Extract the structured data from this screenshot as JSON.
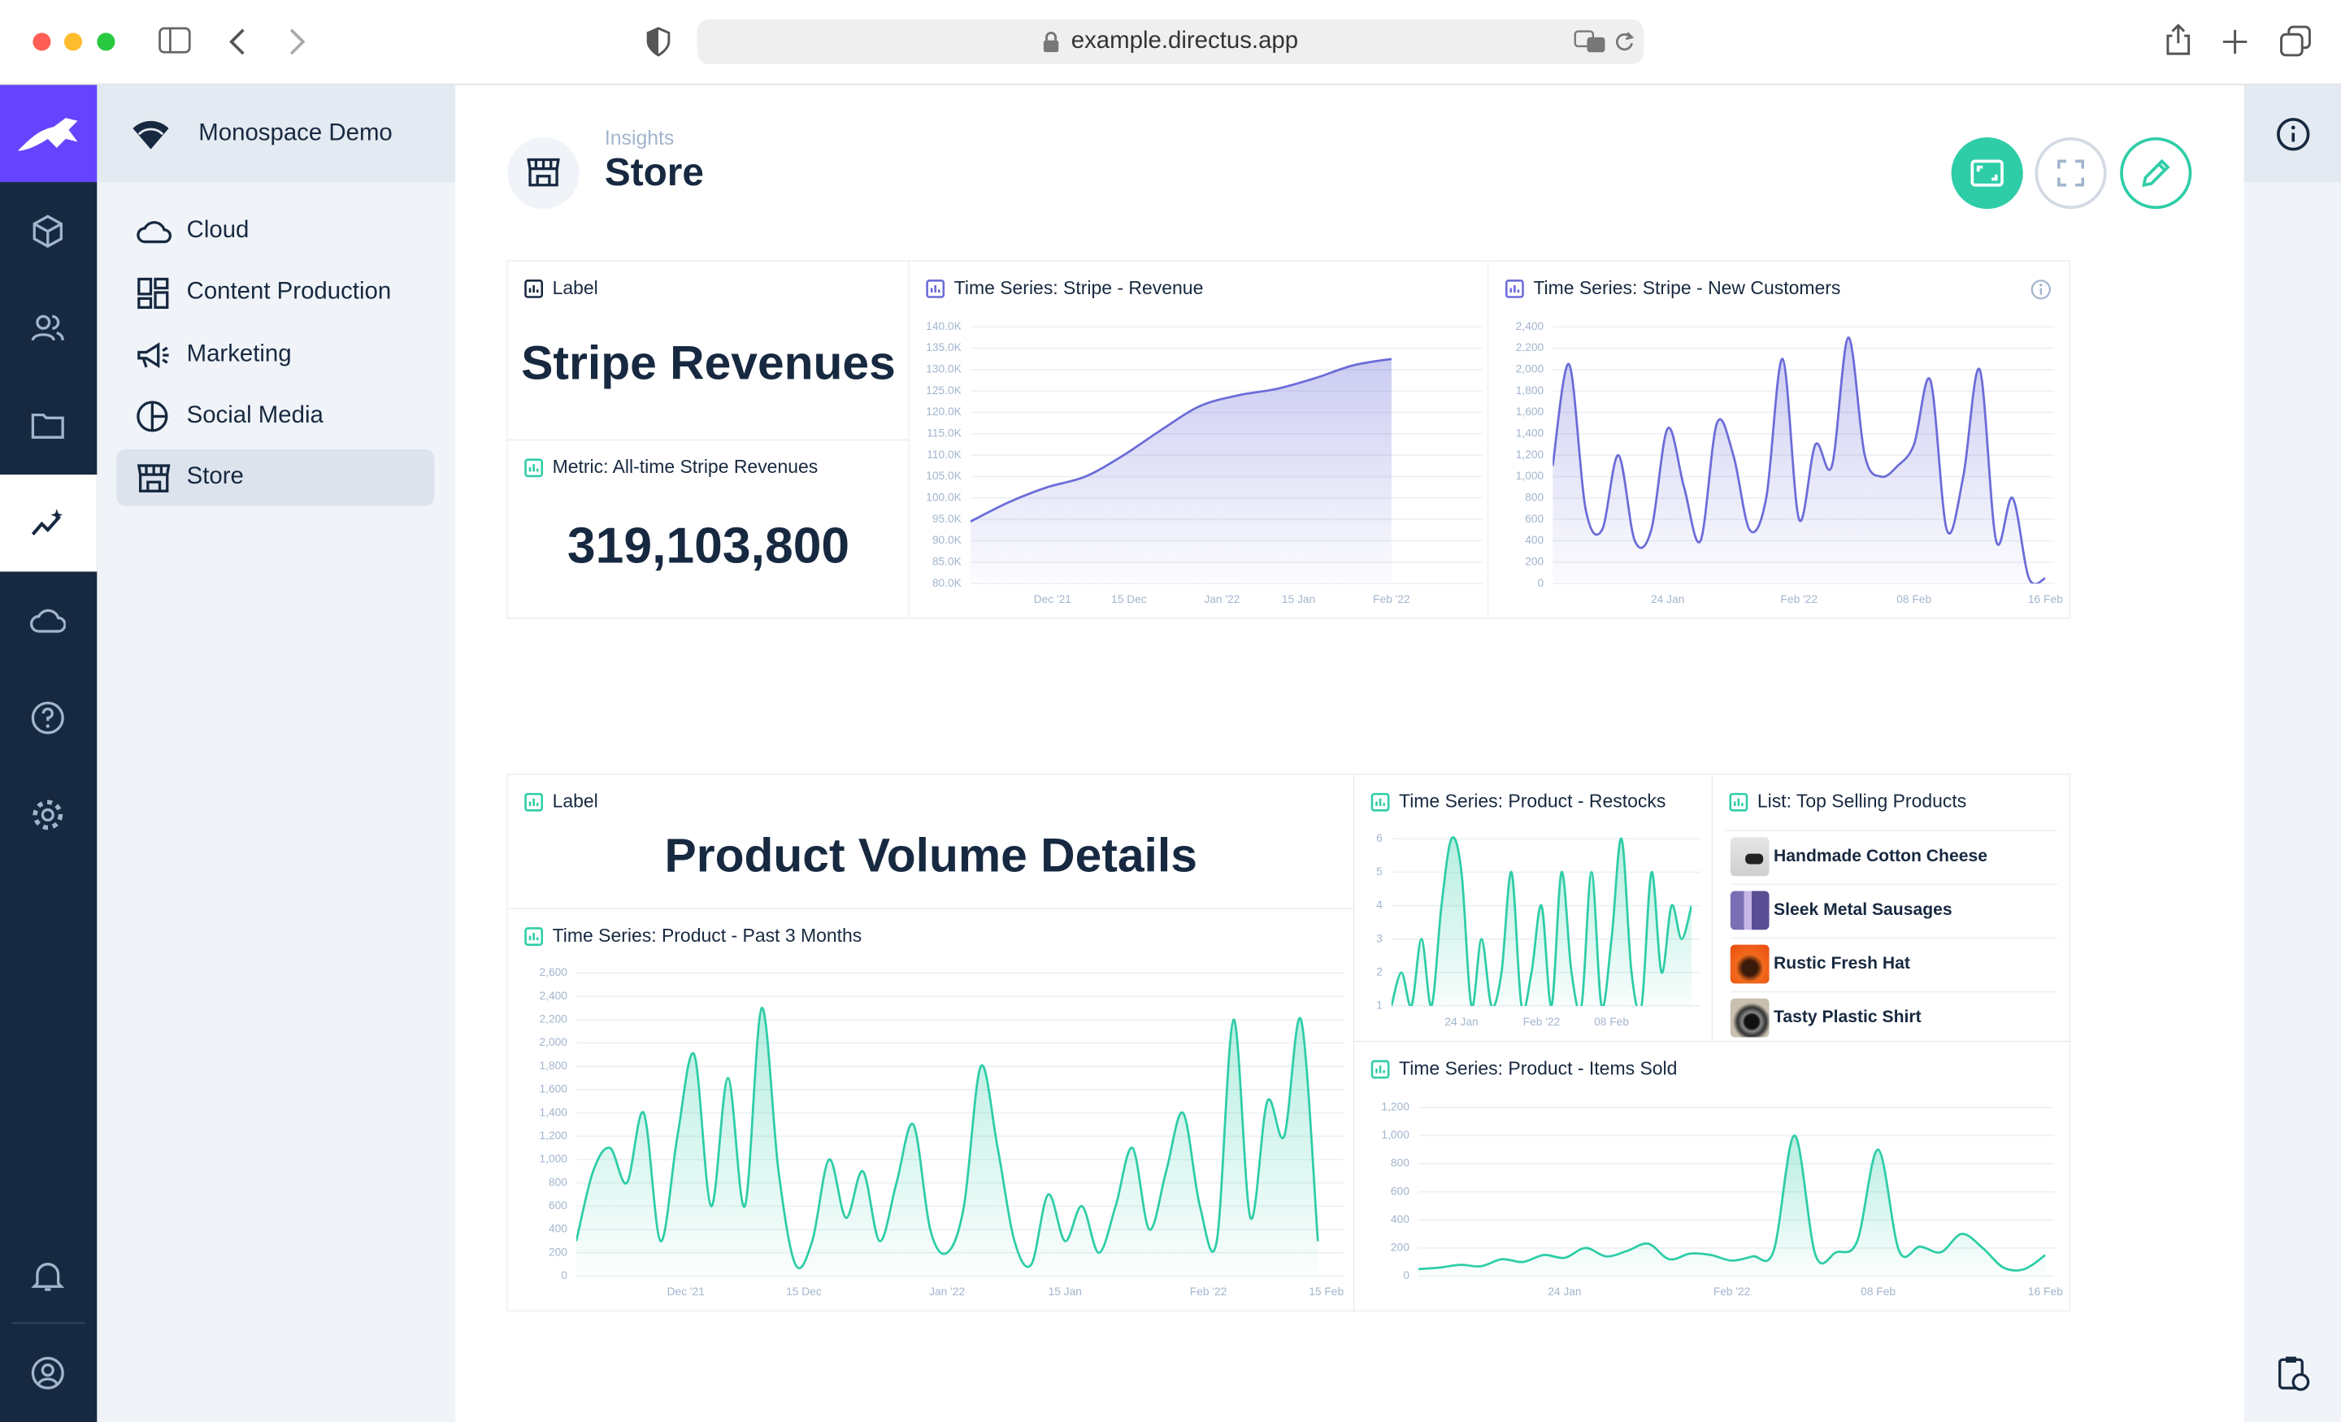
{
  "browser": {
    "url": "example.directus.app"
  },
  "project": "Monospace Demo",
  "nav": [
    "Cloud",
    "Content Production",
    "Marketing",
    "Social Media",
    "Store"
  ],
  "header": {
    "breadcrumb": "Insights",
    "title": "Store"
  },
  "panels": [
    {
      "title": "Label",
      "text": "Stripe Revenues"
    },
    {
      "title": "Metric: All-time Stripe Revenues",
      "value": "319,103,800"
    },
    {
      "title": "Time Series: Stripe - Revenue",
      "chart": {
        "type": "area",
        "x": [
          "2021-11-16",
          "2021-11-23",
          "2021-11-30",
          "2021-12-07",
          "2021-12-14",
          "2021-12-21",
          "2021-12-28",
          "2022-01-04",
          "2022-01-11",
          "2022-01-18",
          "2022-01-25",
          "2022-02-01"
        ],
        "series": [
          {
            "color": "#6b6cd8",
            "values": [
              94500,
              99000,
              102500,
              105000,
              110000,
              116000,
              121500,
              124000,
              125500,
              128000,
              131000,
              132500
            ]
          }
        ],
        "xlim": [
          "2021-11-16",
          "2022-02-16"
        ],
        "xticks": [
          {
            "value": "2021-12-01",
            "label": "Dec '21"
          },
          {
            "value": "2021-12-15",
            "label": "15 Dec"
          },
          {
            "value": "2022-01-01",
            "label": "Jan '22"
          },
          {
            "value": "2022-01-15",
            "label": "15 Jan"
          },
          {
            "value": "2022-02-01",
            "label": "Feb '22"
          }
        ],
        "ylim": [
          80000,
          140000
        ],
        "yticks": [
          {
            "value": 80000,
            "label": "80.0K"
          },
          {
            "value": 85000,
            "label": "85.0K"
          },
          {
            "value": 90000,
            "label": "90.0K"
          },
          {
            "value": 95000,
            "label": "95.0K"
          },
          {
            "value": 100000,
            "label": "100.0K"
          },
          {
            "value": 105000,
            "label": "105.0K"
          },
          {
            "value": 110000,
            "label": "110.0K"
          },
          {
            "value": 115000,
            "label": "115.0K"
          },
          {
            "value": 120000,
            "label": "120.0K"
          },
          {
            "value": 125000,
            "label": "125.0K"
          },
          {
            "value": 130000,
            "label": "130.0K"
          },
          {
            "value": 135000,
            "label": "135.0K"
          },
          {
            "value": 140000,
            "label": "140.0K"
          }
        ],
        "grid": true
      }
    },
    {
      "title": "Time Series: Stripe - New Customers",
      "chart": {
        "type": "area",
        "x": [
          "2022-01-17",
          "2022-01-18",
          "2022-01-19",
          "2022-01-20",
          "2022-01-21",
          "2022-01-22",
          "2022-01-23",
          "2022-01-24",
          "2022-01-25",
          "2022-01-26",
          "2022-01-27",
          "2022-01-28",
          "2022-01-29",
          "2022-01-30",
          "2022-01-31",
          "2022-02-01",
          "2022-02-02",
          "2022-02-03",
          "2022-02-04",
          "2022-02-05",
          "2022-02-06",
          "2022-02-07",
          "2022-02-08",
          "2022-02-09",
          "2022-02-10",
          "2022-02-11",
          "2022-02-12",
          "2022-02-13",
          "2022-02-14",
          "2022-02-15",
          "2022-02-16"
        ],
        "series": [
          {
            "color": "#6b6cd8",
            "values": [
              1100,
              2050,
              700,
              500,
              1200,
              400,
              500,
              1450,
              900,
              400,
              1500,
              1200,
              500,
              800,
              2100,
              600,
              1300,
              1100,
              2300,
              1200,
              1000,
              1100,
              1300,
              1900,
              500,
              1000,
              2000,
              400,
              800,
              50,
              50
            ]
          }
        ],
        "xlim": [
          "2022-01-17",
          "2022-02-16"
        ],
        "xticks": [
          {
            "value": "2022-01-24",
            "label": "24 Jan"
          },
          {
            "value": "2022-02-01",
            "label": "Feb '22"
          },
          {
            "value": "2022-02-08",
            "label": "08 Feb"
          },
          {
            "value": "2022-02-16",
            "label": "16 Feb"
          }
        ],
        "ylim": [
          0,
          2400
        ],
        "yticks": [
          0,
          200,
          400,
          600,
          800,
          {
            "value": 1000,
            "label": "1,000"
          },
          {
            "value": 1200,
            "label": "1,200"
          },
          {
            "value": 1400,
            "label": "1,400"
          },
          {
            "value": 1600,
            "label": "1,600"
          },
          {
            "value": 1800,
            "label": "1,800"
          },
          {
            "value": 2000,
            "label": "2,000"
          },
          {
            "value": 2200,
            "label": "2,200"
          },
          {
            "value": 2400,
            "label": "2,400"
          }
        ],
        "grid": true
      }
    },
    {
      "title": "Label",
      "text": "Product Volume Details"
    },
    {
      "title": "Time Series: Product - Past 3 Months",
      "chart": {
        "type": "area",
        "x": [
          "2021-11-18",
          "2021-11-20",
          "2021-11-22",
          "2021-11-24",
          "2021-11-26",
          "2021-11-28",
          "2021-11-30",
          "2021-12-02",
          "2021-12-04",
          "2021-12-06",
          "2021-12-08",
          "2021-12-10",
          "2021-12-12",
          "2021-12-14",
          "2021-12-16",
          "2021-12-18",
          "2021-12-20",
          "2021-12-22",
          "2021-12-24",
          "2021-12-26",
          "2021-12-28",
          "2021-12-30",
          "2022-01-01",
          "2022-01-03",
          "2022-01-05",
          "2022-01-07",
          "2022-01-09",
          "2022-01-11",
          "2022-01-13",
          "2022-01-15",
          "2022-01-17",
          "2022-01-19",
          "2022-01-21",
          "2022-01-23",
          "2022-01-25",
          "2022-01-27",
          "2022-01-29",
          "2022-01-31",
          "2022-02-02",
          "2022-02-04",
          "2022-02-06",
          "2022-02-08",
          "2022-02-10",
          "2022-02-12",
          "2022-02-14"
        ],
        "series": [
          {
            "color": "#2ecda7",
            "values": [
              300,
              900,
              1100,
              800,
              1400,
              300,
              1200,
              1900,
              600,
              1700,
              600,
              2300,
              900,
              100,
              300,
              1000,
              500,
              900,
              300,
              800,
              1300,
              400,
              200,
              600,
              1800,
              1100,
              300,
              100,
              700,
              300,
              600,
              200,
              600,
              1100,
              400,
              900,
              1400,
              600,
              300,
              2200,
              500,
              1500,
              1200,
              2200,
              300
            ]
          }
        ],
        "xlim": [
          "2021-11-18",
          "2022-02-16"
        ],
        "xticks": [
          {
            "value": "2021-12-01",
            "label": "Dec '21"
          },
          {
            "value": "2021-12-15",
            "label": "15 Dec"
          },
          {
            "value": "2022-01-01",
            "label": "Jan '22"
          },
          {
            "value": "2022-01-15",
            "label": "15 Jan"
          },
          {
            "value": "2022-02-01",
            "label": "Feb '22"
          },
          {
            "value": "2022-02-15",
            "label": "15 Feb"
          }
        ],
        "ylim": [
          0,
          2600
        ],
        "yticks": [
          0,
          200,
          400,
          600,
          800,
          {
            "value": 1000,
            "label": "1,000"
          },
          {
            "value": 1200,
            "label": "1,200"
          },
          {
            "value": 1400,
            "label": "1,400"
          },
          {
            "value": 1600,
            "label": "1,600"
          },
          {
            "value": 1800,
            "label": "1,800"
          },
          {
            "value": 2000,
            "label": "2,000"
          },
          {
            "value": 2200,
            "label": "2,200"
          },
          {
            "value": 2400,
            "label": "2,400"
          },
          {
            "value": 2600,
            "label": "2,600"
          }
        ],
        "grid": true
      }
    },
    {
      "title": "Time Series: Product - Restocks",
      "chart": {
        "type": "area",
        "x": [
          "2022-01-17",
          "2022-01-18",
          "2022-01-19",
          "2022-01-20",
          "2022-01-21",
          "2022-01-22",
          "2022-01-23",
          "2022-01-24",
          "2022-01-25",
          "2022-01-26",
          "2022-01-27",
          "2022-01-28",
          "2022-01-29",
          "2022-01-30",
          "2022-01-31",
          "2022-02-01",
          "2022-02-02",
          "2022-02-03",
          "2022-02-04",
          "2022-02-05",
          "2022-02-06",
          "2022-02-07",
          "2022-02-08",
          "2022-02-09",
          "2022-02-10",
          "2022-02-11",
          "2022-02-12",
          "2022-02-13",
          "2022-02-14",
          "2022-02-15",
          "2022-02-16"
        ],
        "series": [
          {
            "color": "#2ecda7",
            "values": [
              1,
              2,
              1,
              3,
              1,
              4,
              6,
              5,
              1,
              3,
              1,
              2,
              5,
              1,
              2,
              4,
              1,
              5,
              2,
              1,
              5,
              1,
              3,
              6,
              2,
              1,
              5,
              2,
              4,
              3,
              4
            ]
          }
        ],
        "xlim": [
          "2022-01-17",
          "2022-02-16"
        ],
        "xticks": [
          {
            "value": "2022-01-24",
            "label": "24 Jan"
          },
          {
            "value": "2022-02-01",
            "label": "Feb '22"
          },
          {
            "value": "2022-02-08",
            "label": "08 Feb"
          }
        ],
        "ylim": [
          1,
          6
        ],
        "yticks": [
          1,
          2,
          3,
          4,
          5,
          6
        ],
        "grid": true
      }
    },
    {
      "title": "List: Top Selling Products",
      "items": [
        "Handmade Cotton Cheese",
        "Sleek Metal Sausages",
        "Rustic Fresh Hat",
        "Tasty Plastic Shirt"
      ]
    },
    {
      "title": "Time Series: Product - Items Sold",
      "chart": {
        "type": "area",
        "x": [
          "2022-01-17",
          "2022-01-18",
          "2022-01-19",
          "2022-01-20",
          "2022-01-21",
          "2022-01-22",
          "2022-01-23",
          "2022-01-24",
          "2022-01-25",
          "2022-01-26",
          "2022-01-27",
          "2022-01-28",
          "2022-01-29",
          "2022-01-30",
          "2022-01-31",
          "2022-02-01",
          "2022-02-02",
          "2022-02-03",
          "2022-02-04",
          "2022-02-05",
          "2022-02-06",
          "2022-02-07",
          "2022-02-08",
          "2022-02-09",
          "2022-02-10",
          "2022-02-11",
          "2022-02-12",
          "2022-02-13",
          "2022-02-14",
          "2022-02-15",
          "2022-02-16"
        ],
        "series": [
          {
            "color": "#2ecda7",
            "values": [
              50,
              60,
              80,
              70,
              120,
              100,
              150,
              130,
              200,
              140,
              180,
              230,
              120,
              160,
              150,
              110,
              140,
              180,
              1000,
              150,
              170,
              250,
              900,
              180,
              210,
              170,
              300,
              200,
              60,
              50,
              150
            ]
          }
        ],
        "xlim": [
          "2022-01-17",
          "2022-02-16"
        ],
        "xticks": [
          {
            "value": "2022-01-24",
            "label": "24 Jan"
          },
          {
            "value": "2022-02-01",
            "label": "Feb '22"
          },
          {
            "value": "2022-02-08",
            "label": "08 Feb"
          },
          {
            "value": "2022-02-16",
            "label": "16 Feb"
          }
        ],
        "ylim": [
          0,
          1200
        ],
        "yticks": [
          0,
          200,
          400,
          600,
          800,
          {
            "value": 1000,
            "label": "1,000"
          },
          {
            "value": 1200,
            "label": "1,200"
          }
        ],
        "grid": true
      }
    }
  ]
}
